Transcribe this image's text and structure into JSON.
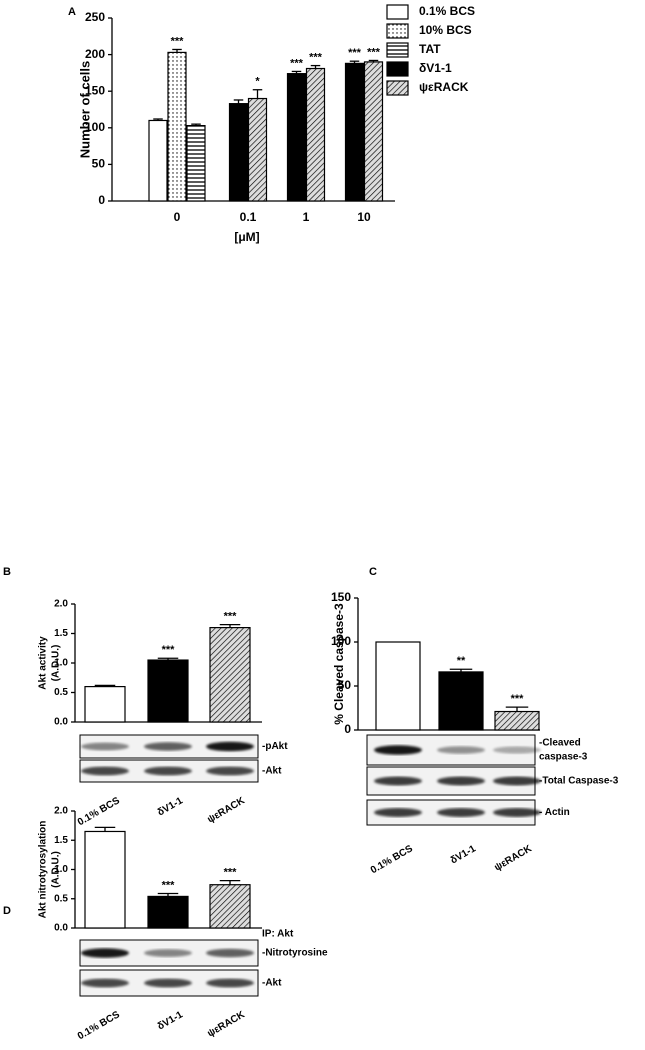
{
  "chart_data": [
    {
      "type": "bar",
      "panel": "A",
      "ylabel": "Number of cells",
      "xlabel": "[μM]",
      "categories": [
        "0",
        "0.1",
        "1",
        "10"
      ],
      "ylim": [
        0,
        250
      ],
      "yticks": [
        0,
        50,
        100,
        150,
        200,
        250
      ],
      "legend": "right",
      "series": [
        {
          "name": "0.1% BCS",
          "pattern": "white",
          "values": [
            110,
            null,
            null,
            null
          ],
          "errors": [
            2,
            null,
            null,
            null
          ],
          "significance": [
            null,
            null,
            null,
            null
          ]
        },
        {
          "name": "10% BCS",
          "pattern": "dots",
          "values": [
            203,
            null,
            null,
            null
          ],
          "errors": [
            4,
            null,
            null,
            null
          ],
          "significance": [
            "***",
            null,
            null,
            null
          ]
        },
        {
          "name": "TAT",
          "pattern": "hlines",
          "values": [
            103,
            null,
            null,
            null
          ],
          "errors": [
            2,
            null,
            null,
            null
          ],
          "significance": [
            null,
            null,
            null,
            null
          ]
        },
        {
          "name": "δV1-1",
          "pattern": "black",
          "values": [
            null,
            133,
            174,
            188
          ],
          "errors": [
            null,
            5,
            3,
            3
          ],
          "significance": [
            null,
            null,
            "***",
            "***"
          ]
        },
        {
          "name": "ψεRACK",
          "pattern": "hatch",
          "values": [
            null,
            140,
            181,
            190
          ],
          "errors": [
            null,
            12,
            4,
            2
          ],
          "significance": [
            null,
            "*",
            "***",
            "***"
          ]
        }
      ]
    },
    {
      "type": "bar",
      "panel": "B",
      "ylabel": [
        "Akt activity",
        "(A.D.U.)"
      ],
      "categories": [
        "0.1% BCS",
        "δV1-1",
        "ψεRACK"
      ],
      "patterns": [
        "white",
        "black",
        "hatch"
      ],
      "values": [
        0.6,
        1.05,
        1.6
      ],
      "errors": [
        0.02,
        0.03,
        0.05
      ],
      "significance": [
        null,
        "***",
        "***"
      ],
      "ylim": [
        0,
        2
      ],
      "yticks": [
        {
          "value": 0,
          "label": "0.0"
        },
        0.5,
        {
          "value": 1,
          "label": "1.0"
        },
        1.5,
        {
          "value": 2,
          "label": "2.0"
        }
      ],
      "blot_labels": [
        [
          "-pAkt"
        ],
        [
          "-Akt"
        ]
      ]
    },
    {
      "type": "bar",
      "panel": "C",
      "ylabel": [
        "% Cleaved caspase-3"
      ],
      "categories": [
        "0.1% BCS",
        "δV1-1",
        "ψεRACK"
      ],
      "patterns": [
        "white",
        "black",
        "hatch"
      ],
      "values": [
        100,
        66,
        21
      ],
      "errors": [
        0,
        3,
        5
      ],
      "significance": [
        null,
        "**",
        "***"
      ],
      "ylim": [
        0,
        150
      ],
      "yticks": [
        0,
        50,
        100,
        150
      ],
      "blot_labels": [
        [
          "-Cleaved",
          "caspase-3"
        ],
        [
          "-Total Caspase-3"
        ],
        [
          "- Actin"
        ]
      ]
    },
    {
      "type": "bar",
      "panel": "D",
      "ylabel": [
        "Akt nitrotyrosylation",
        "(A.D.U.)"
      ],
      "ip_label": "IP: Akt",
      "categories": [
        "0.1% BCS",
        "δV1-1",
        "ψεRACK"
      ],
      "patterns": [
        "white",
        "black",
        "hatch"
      ],
      "values": [
        1.65,
        0.54,
        0.74
      ],
      "errors": [
        0.07,
        0.05,
        0.07
      ],
      "significance": [
        null,
        "***",
        "***"
      ],
      "ylim": [
        0,
        2
      ],
      "yticks": [
        {
          "value": 0,
          "label": "0.0"
        },
        0.5,
        {
          "value": 1,
          "label": "1.0"
        },
        1.5,
        {
          "value": 2,
          "label": "2.0"
        }
      ],
      "blot_labels": [
        [
          "-Nitrotyrosine"
        ],
        [
          "-Akt"
        ]
      ]
    }
  ]
}
